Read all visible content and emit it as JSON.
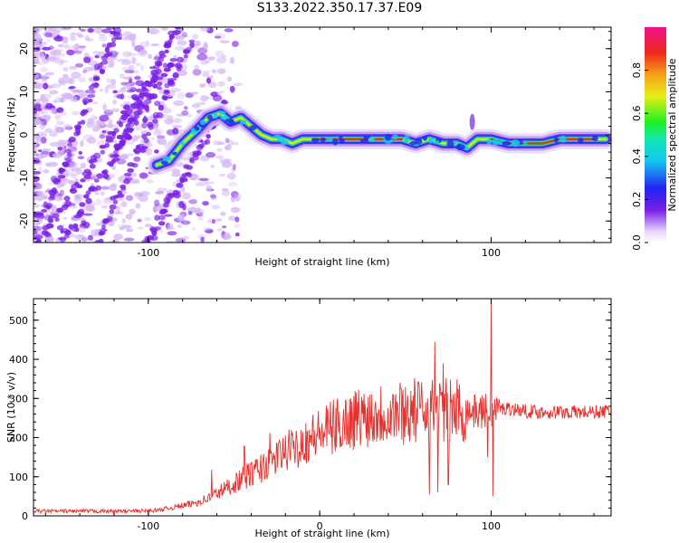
{
  "title": "S133.2022.350.17.37.E09",
  "colors": {
    "snr_line": "#e8302c",
    "scatter_purple": "#7a1fe6",
    "scatter_light": "#d6b8f4",
    "axis": "#000000"
  },
  "chart_data": [
    {
      "type": "heatmap",
      "name": "spectrogram",
      "xlabel": "Height of straight line (km)",
      "ylabel": "Frequency (Hz)",
      "xlim": [
        -167,
        170
      ],
      "ylim": [
        -25,
        25
      ],
      "xticks": [
        -100,
        100
      ],
      "yticks": [
        -20,
        -10,
        0,
        10,
        20
      ],
      "colorbar": {
        "label": "Normalized spectral amplitude",
        "range": [
          0,
          1
        ],
        "ticks": [
          "0.0",
          "0.2",
          "0.4",
          "0.6",
          "0.8"
        ],
        "colormap": "rainbow"
      },
      "dominant_frequency_track": {
        "x": [
          -95,
          -88,
          -80,
          -72,
          -65,
          -58,
          -52,
          -46,
          -40,
          -34,
          -28,
          -22,
          -16,
          -10,
          -4,
          0,
          10,
          20,
          28,
          32,
          40,
          48,
          56,
          64,
          72,
          80,
          86,
          92,
          100,
          110,
          120,
          130,
          140,
          150,
          160,
          167
        ],
        "y": [
          -7,
          -6,
          -2,
          1,
          4,
          5,
          3,
          4,
          2,
          0,
          -1,
          -1,
          -2,
          -1,
          -1,
          -1,
          -1,
          -1,
          -1,
          -1,
          -1,
          -1,
          -2,
          -1,
          -2,
          -2,
          -3,
          -1,
          -1,
          -2,
          -2,
          -2,
          -1,
          -1,
          -1,
          -1
        ]
      }
    },
    {
      "type": "line",
      "name": "snr",
      "xlabel": "Height of straight line (km)",
      "ylabel": "SNR (10 * v/v)",
      "xlim": [
        -167,
        170
      ],
      "ylim": [
        0,
        555
      ],
      "xticks": [
        "-100",
        "0",
        "100"
      ],
      "yticks": [
        "0",
        "100",
        "200",
        "300",
        "400",
        "500"
      ],
      "envelope": {
        "x": [
          -167,
          -140,
          -110,
          -95,
          -85,
          -75,
          -65,
          -55,
          -45,
          -35,
          -25,
          -15,
          -5,
          5,
          15,
          25,
          35,
          45,
          55,
          65,
          75,
          85,
          92,
          100,
          110,
          120,
          130,
          140,
          150,
          160,
          170
        ],
        "y": [
          12,
          12,
          12,
          14,
          22,
          30,
          45,
          70,
          95,
          120,
          150,
          175,
          200,
          220,
          240,
          255,
          262,
          265,
          268,
          270,
          268,
          270,
          265,
          270,
          275,
          268,
          265,
          265,
          265,
          265,
          268
        ]
      },
      "spikes": [
        {
          "x": -63,
          "y": 118
        },
        {
          "x": -44,
          "y": 178
        },
        {
          "x": -29,
          "y": 212
        },
        {
          "x": -15,
          "y": 192
        },
        {
          "x": 62,
          "y": 290
        },
        {
          "x": 64,
          "y": 55
        },
        {
          "x": 67,
          "y": 445
        },
        {
          "x": 69,
          "y": 60
        },
        {
          "x": 72,
          "y": 390
        },
        {
          "x": 75,
          "y": 80
        },
        {
          "x": 98,
          "y": 150
        },
        {
          "x": 100,
          "y": 555
        },
        {
          "x": 101,
          "y": 50
        }
      ]
    }
  ]
}
